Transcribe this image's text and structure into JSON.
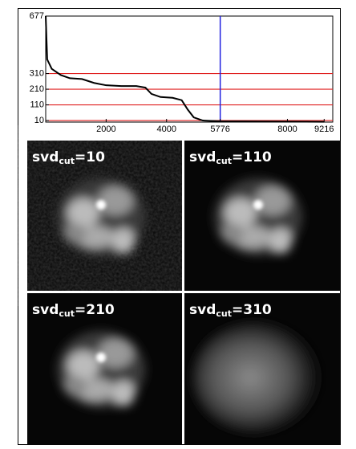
{
  "chart_data": {
    "type": "line",
    "x": [
      0,
      50,
      200,
      500,
      800,
      1200,
      1600,
      2000,
      2500,
      3000,
      3300,
      3500,
      3800,
      4200,
      4500,
      4700,
      4900,
      5200,
      5776,
      9216
    ],
    "series": [
      {
        "color": "#000000",
        "values": [
          677,
          400,
          340,
          300,
          280,
          275,
          250,
          235,
          230,
          230,
          220,
          180,
          160,
          155,
          140,
          80,
          30,
          10,
          5,
          2
        ]
      }
    ],
    "xlim": [
      0,
      9500
    ],
    "ylim": [
      0,
      677
    ],
    "xticks": [
      2000,
      4000,
      5776,
      8000,
      9216
    ],
    "yticks": [
      10,
      110,
      210,
      310,
      677
    ],
    "hlines": {
      "values": [
        10,
        110,
        210,
        310
      ],
      "color": "#e02020"
    },
    "vline": {
      "value": 5776,
      "color": "#2020e0"
    }
  },
  "panels": [
    {
      "prefix": "svd",
      "subscript": "cut",
      "text": "=10"
    },
    {
      "prefix": "svd",
      "subscript": "cut",
      "text": "=110"
    },
    {
      "prefix": "svd",
      "subscript": "cut",
      "text": "=210"
    },
    {
      "prefix": "svd",
      "subscript": "cut",
      "text": "=310"
    }
  ]
}
